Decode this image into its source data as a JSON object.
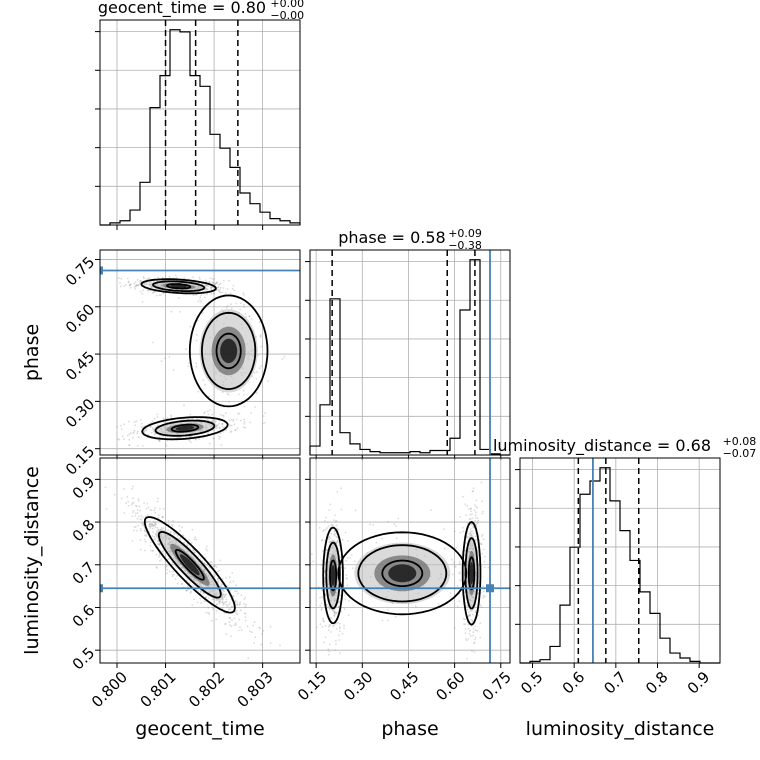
{
  "chart_data": {
    "type": "corner",
    "parameters": [
      "geocent_time",
      "phase",
      "luminosity_distance"
    ],
    "axis_labels": [
      "geocent_time",
      "phase",
      "luminosity_distance"
    ],
    "ranges": [
      [
        0.79965,
        0.80377
      ],
      [
        0.13,
        0.78
      ],
      [
        0.47,
        0.95
      ]
    ],
    "ticks": [
      [
        "0.800",
        "0.801",
        "0.802",
        "0.803"
      ],
      [
        "0.15",
        "0.30",
        "0.45",
        "0.60",
        "0.75"
      ],
      [
        "0.5",
        "0.6",
        "0.7",
        "0.8",
        "0.9"
      ]
    ],
    "titles": [
      {
        "text": "geocent_time = 0.80",
        "sup": "+0.00",
        "sub": "−0.00"
      },
      {
        "text": "phase = 0.58",
        "sup": "+0.09",
        "sub": "−0.38"
      },
      {
        "text": "luminosity_distance = 0.68",
        "sup": "+0.08",
        "sub": "−0.07"
      }
    ],
    "quantiles": [
      [
        0.801,
        0.80162,
        0.80249
      ],
      [
        0.202,
        0.576,
        0.666
      ],
      [
        0.61,
        0.676,
        0.755
      ]
    ],
    "truths": [
      null,
      0.715,
      0.645
    ],
    "truth_color": "#4682b4",
    "histograms": [
      {
        "edges_start": 0.79965,
        "bin_width": 0.000206,
        "counts": [
          0,
          2,
          4,
          14,
          40,
          110,
          140,
          183,
          181,
          140,
          130,
          85,
          72,
          54,
          30,
          20,
          12,
          6,
          4,
          2
        ]
      },
      {
        "edges_start": 0.13,
        "bin_width": 0.0325,
        "counts": [
          8,
          45,
          140,
          20,
          10,
          5,
          3,
          2,
          2,
          2,
          3,
          2,
          4,
          4,
          15,
          130,
          175,
          5,
          1,
          0
        ]
      },
      {
        "edges_start": 0.47,
        "bin_width": 0.024,
        "counts": [
          0,
          1,
          2,
          10,
          35,
          70,
          102,
          110,
          118,
          98,
          80,
          62,
          43,
          30,
          15,
          6,
          3,
          1,
          0,
          0
        ]
      }
    ],
    "grid": true
  }
}
